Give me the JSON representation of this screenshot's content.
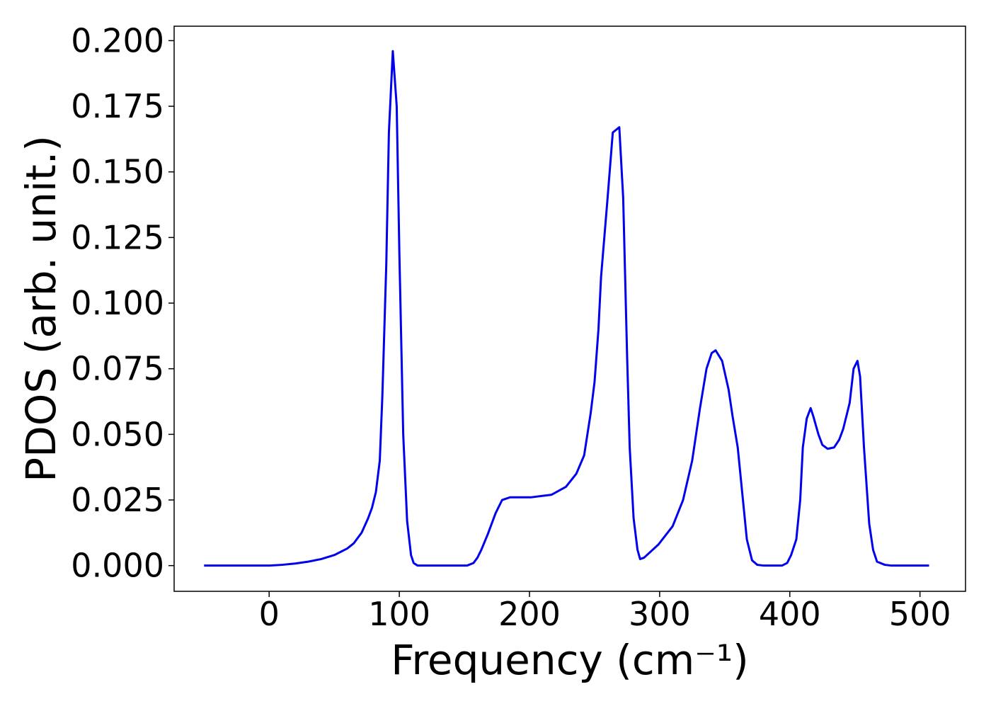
{
  "chart_data": {
    "type": "line",
    "xlabel": "Frequency (cm⁻¹)",
    "ylabel": "PDOS (arb. unit.)",
    "x": [
      -50,
      0,
      10,
      20,
      30,
      40,
      50,
      60,
      65,
      71,
      76,
      79,
      82,
      85,
      87,
      90,
      92,
      95,
      98,
      100,
      103,
      106,
      109,
      111,
      114,
      152,
      157,
      160,
      163,
      168,
      174,
      179,
      185,
      201,
      217,
      228,
      236,
      242,
      247,
      250,
      253,
      255,
      260,
      264,
      269,
      272,
      275,
      277,
      280,
      283,
      285,
      288,
      299,
      310,
      318,
      325,
      331,
      336,
      340,
      343,
      348,
      353,
      356,
      360,
      364,
      367,
      371,
      375,
      380,
      394,
      398,
      401,
      405,
      408,
      410,
      413,
      416,
      418,
      422,
      425,
      429,
      434,
      438,
      441,
      446,
      449,
      452,
      454,
      457,
      461,
      464,
      467,
      473,
      478,
      507
    ],
    "series": [
      {
        "name": "PDOS",
        "color": "#0000ee",
        "values": [
          0,
          0,
          0.0003,
          0.0008,
          0.0015,
          0.0025,
          0.004,
          0.0065,
          0.0085,
          0.0125,
          0.018,
          0.022,
          0.028,
          0.04,
          0.065,
          0.115,
          0.165,
          0.196,
          0.175,
          0.12,
          0.05,
          0.017,
          0.004,
          0.001,
          0,
          0,
          0.001,
          0.003,
          0.006,
          0.012,
          0.02,
          0.025,
          0.026,
          0.026,
          0.027,
          0.03,
          0.035,
          0.042,
          0.058,
          0.07,
          0.09,
          0.11,
          0.14,
          0.165,
          0.167,
          0.14,
          0.08,
          0.045,
          0.018,
          0.006,
          0.0025,
          0.003,
          0.008,
          0.015,
          0.025,
          0.04,
          0.06,
          0.075,
          0.081,
          0.082,
          0.078,
          0.067,
          0.057,
          0.045,
          0.025,
          0.01,
          0.002,
          0.0003,
          0,
          0,
          0.001,
          0.004,
          0.01,
          0.025,
          0.045,
          0.056,
          0.06,
          0.057,
          0.05,
          0.046,
          0.0445,
          0.045,
          0.048,
          0.052,
          0.062,
          0.075,
          0.078,
          0.072,
          0.045,
          0.016,
          0.006,
          0.0015,
          0.0003,
          0,
          0
        ]
      }
    ],
    "xlim": [
      -73,
      535
    ],
    "ylim": [
      -0.0098,
      0.2055
    ],
    "xticks": [
      0,
      100,
      200,
      300,
      400,
      500
    ],
    "yticks": [
      {
        "value": 0,
        "label": "0.000"
      },
      {
        "value": 0.025,
        "label": "0.025"
      },
      {
        "value": 0.05,
        "label": "0.050"
      },
      {
        "value": 0.075,
        "label": "0.075"
      },
      {
        "value": 0.1,
        "label": "0.100"
      },
      {
        "value": 0.125,
        "label": "0.125"
      },
      {
        "value": 0.15,
        "label": "0.150"
      },
      {
        "value": 0.175,
        "label": "0.175"
      },
      {
        "value": 0.2,
        "label": "0.200"
      }
    ],
    "grid": false
  }
}
